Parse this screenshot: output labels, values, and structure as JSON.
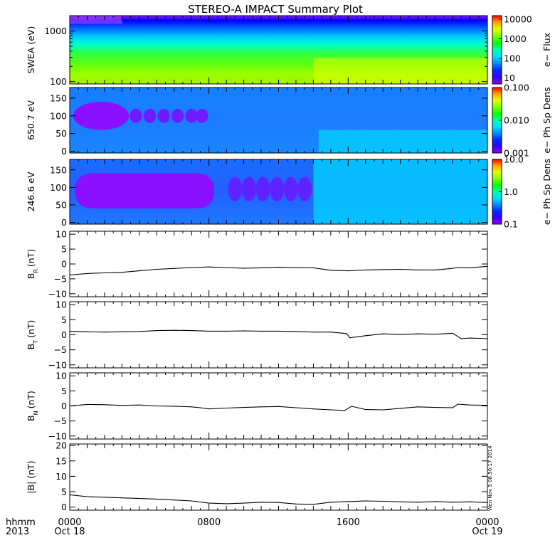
{
  "title": "STEREO-A IMPACT Summary Plot",
  "time_axis": {
    "label_line1": "hhmm",
    "label_line2": "2013",
    "ticks": [
      {
        "hours": 0,
        "top": "0000",
        "bottom": "Oct 18"
      },
      {
        "hours": 8,
        "top": "0800",
        "bottom": ""
      },
      {
        "hours": 16,
        "top": "1600",
        "bottom": ""
      },
      {
        "hours": 24,
        "top": "0000",
        "bottom": "Oct 19"
      }
    ],
    "range_hours": [
      0,
      24
    ]
  },
  "stamp": "Wen Nov 5 08:50:17 2014",
  "colors": {
    "ink": "#000000",
    "background": "#ffffff"
  },
  "chart_data": [
    {
      "type": "heatmap",
      "ylabel": "SWEA (eV)",
      "yscale": "log",
      "ylim": [
        90,
        2000
      ],
      "yticks": [
        {
          "v": 100,
          "l": "100"
        },
        {
          "v": 1000,
          "l": "1000"
        }
      ],
      "colorbar": {
        "label": "e− Flux",
        "scale": "log",
        "range": [
          5,
          15000
        ],
        "ticks": [
          {
            "v": 10,
            "l": "10"
          },
          {
            "v": 100,
            "l": "100"
          },
          {
            "v": 1000,
            "l": "1000"
          },
          {
            "v": 10000,
            "l": "10000"
          }
        ]
      },
      "features": "Flux highest near 100 eV (green to yellow), falling to violet above 1500 eV; brighter and higher after 1400"
    },
    {
      "type": "heatmap",
      "ylabel": "650.7 eV",
      "ylim": [
        -5,
        180
      ],
      "yticks": [
        {
          "v": 0,
          "l": "0"
        },
        {
          "v": 50,
          "l": "50"
        },
        {
          "v": 100,
          "l": "100"
        },
        {
          "v": 150,
          "l": "150"
        }
      ],
      "colorbar": {
        "label": "e− Ph Sp Dens",
        "scale": "log",
        "range": [
          0.001,
          0.1
        ],
        "ticks": [
          {
            "v": 0.001,
            "l": "0.001"
          },
          {
            "v": 0.01,
            "l": "0.010"
          },
          {
            "v": 0.1,
            "l": "0.100"
          }
        ]
      },
      "features": "Violet blobs near 100 deg from 0000 to 0800; mostly blue afterwards, cyan near 0-60 deg after 1430"
    },
    {
      "type": "heatmap",
      "ylabel": "246.6 eV",
      "ylim": [
        -5,
        180
      ],
      "yticks": [
        {
          "v": 0,
          "l": "0"
        },
        {
          "v": 50,
          "l": "50"
        },
        {
          "v": 100,
          "l": "100"
        },
        {
          "v": 150,
          "l": "150"
        }
      ],
      "colorbar": {
        "label": "e− Ph Sp Dens",
        "scale": "log",
        "range": [
          0.1,
          10
        ],
        "ticks": [
          {
            "v": 0.1,
            "l": "0.1"
          },
          {
            "v": 1,
            "l": "1.0"
          },
          {
            "v": 10,
            "l": "10.0"
          }
        ]
      },
      "features": "Wide violet band 40-140 deg until 0830, separate blobs until 1400; cyan from 1400 on"
    },
    {
      "type": "line",
      "ylabel": "B",
      "ylabel_sub": "R",
      "ylabel_unit": "(nT)",
      "ylim": [
        -11,
        11
      ],
      "yticks": [
        {
          "v": -10,
          "l": "−10"
        },
        {
          "v": -5,
          "l": "−5"
        },
        {
          "v": 0,
          "l": "0"
        },
        {
          "v": 5,
          "l": "5"
        },
        {
          "v": 10,
          "l": "10"
        }
      ],
      "x": [
        0,
        1,
        2,
        3,
        4,
        5,
        6,
        7,
        8,
        9,
        10,
        11,
        12,
        13,
        14,
        15,
        16,
        17,
        18,
        19,
        20,
        21,
        21.8,
        22.3,
        23,
        24
      ],
      "y": [
        -3.7,
        -3.2,
        -3,
        -2.8,
        -2.3,
        -1.8,
        -1.5,
        -1.2,
        -1,
        -1.2,
        -1.4,
        -1.3,
        -1.1,
        -1.2,
        -1.3,
        -2.1,
        -2.3,
        -2,
        -1.9,
        -1.8,
        -2,
        -2,
        -1.6,
        -1.2,
        -1.3,
        -0.8
      ]
    },
    {
      "type": "line",
      "ylabel": "B",
      "ylabel_sub": "T",
      "ylabel_unit": "(nT)",
      "ylim": [
        -11,
        11
      ],
      "yticks": [
        {
          "v": -10,
          "l": "−10"
        },
        {
          "v": -5,
          "l": "−5"
        },
        {
          "v": 0,
          "l": "0"
        },
        {
          "v": 5,
          "l": "5"
        },
        {
          "v": 10,
          "l": "10"
        }
      ],
      "x": [
        0,
        1,
        2,
        3,
        4,
        5,
        6,
        7,
        8,
        9,
        10,
        11,
        12,
        13,
        14,
        15,
        15.9,
        16.1,
        17,
        18,
        19,
        20,
        21,
        22,
        22.5,
        23,
        24
      ],
      "y": [
        1.2,
        1,
        0.9,
        1,
        1.1,
        1.4,
        1.5,
        1.4,
        1.2,
        1.2,
        1.3,
        1.2,
        1.2,
        1.1,
        0.9,
        0.9,
        0.4,
        -1,
        -0.3,
        0.3,
        0.1,
        0.3,
        0.2,
        0.5,
        -1.3,
        -1.1,
        -1.3
      ]
    },
    {
      "type": "line",
      "ylabel": "B",
      "ylabel_sub": "N",
      "ylabel_unit": "(nT)",
      "ylim": [
        -11,
        11
      ],
      "yticks": [
        {
          "v": -10,
          "l": "−10"
        },
        {
          "v": -5,
          "l": "−5"
        },
        {
          "v": 0,
          "l": "0"
        },
        {
          "v": 5,
          "l": "5"
        },
        {
          "v": 10,
          "l": "10"
        }
      ],
      "x": [
        0,
        1,
        2,
        3,
        4,
        5,
        6,
        7,
        7.5,
        8,
        9,
        10,
        11,
        12,
        13,
        14,
        15,
        15.8,
        16.2,
        17,
        18,
        19,
        20,
        21,
        22,
        22.3,
        23,
        24
      ],
      "y": [
        0,
        0.5,
        0.4,
        0.2,
        0.3,
        0,
        -0.1,
        -0.3,
        -0.6,
        -1,
        -0.7,
        -0.5,
        -0.3,
        -0.2,
        -0.6,
        -1,
        -1.3,
        -1.5,
        -0.1,
        -1.2,
        -1.3,
        -0.8,
        -0.3,
        -0.5,
        -0.6,
        0.6,
        0.3,
        0.2
      ]
    },
    {
      "type": "line",
      "ylabel": "|B|",
      "ylabel_unit": "(nT)",
      "ylim": [
        -1,
        20.5
      ],
      "yticks": [
        {
          "v": 0,
          "l": "0"
        },
        {
          "v": 5,
          "l": "5"
        },
        {
          "v": 10,
          "l": "10"
        },
        {
          "v": 15,
          "l": "15"
        },
        {
          "v": 20,
          "l": "20"
        }
      ],
      "x": [
        0,
        1,
        2,
        3,
        4,
        5,
        6,
        7,
        8,
        9,
        10,
        11,
        12,
        13,
        14,
        15,
        16,
        17,
        18,
        19,
        20,
        21,
        22,
        23,
        24
      ],
      "y": [
        4,
        3.4,
        3.2,
        3,
        2.8,
        2.6,
        2.3,
        2,
        1.3,
        1.1,
        1.3,
        1.6,
        1.5,
        1,
        0.9,
        1.6,
        1.8,
        2,
        1.9,
        1.7,
        1.6,
        1.8,
        1.6,
        1.7,
        1.5
      ]
    }
  ]
}
